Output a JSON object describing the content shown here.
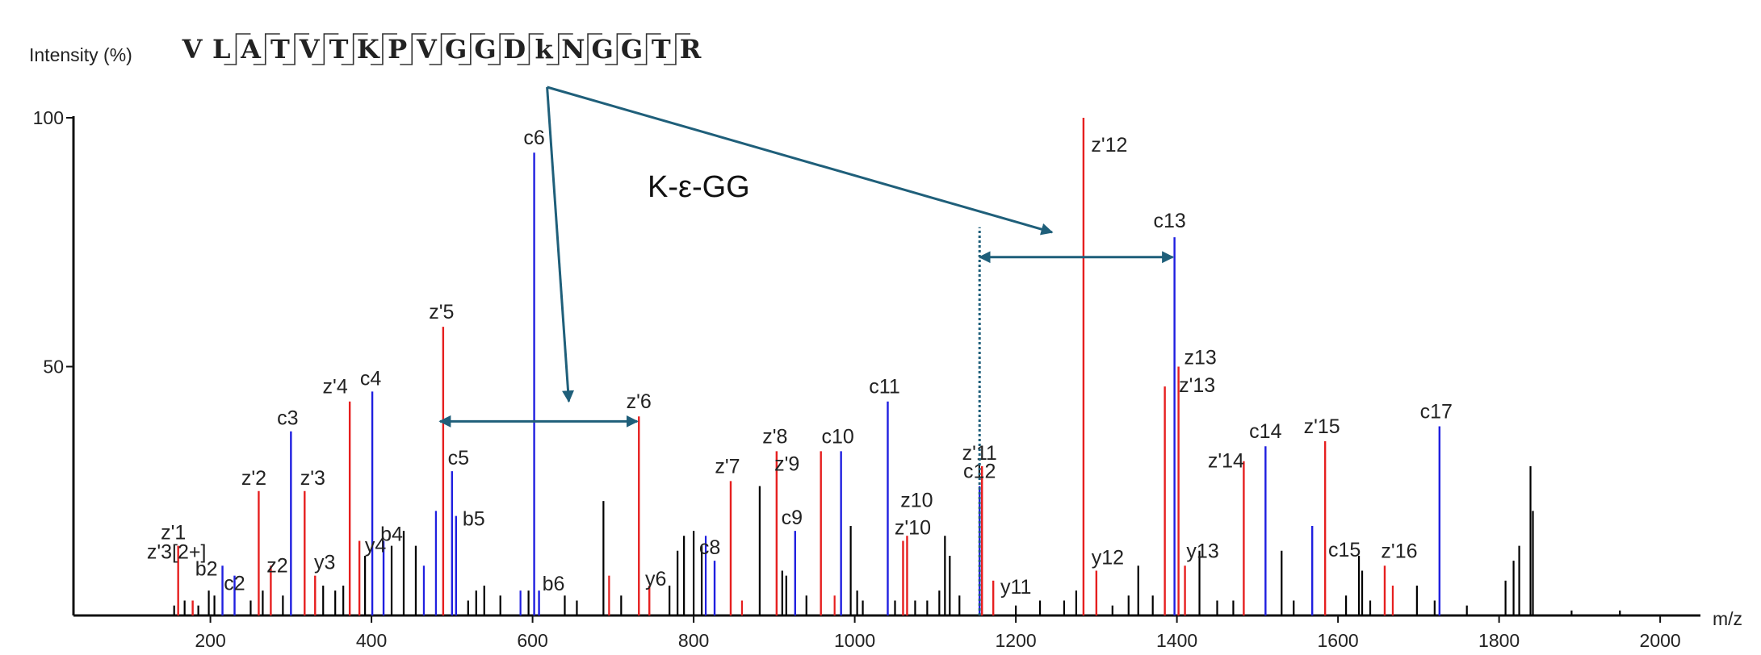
{
  "chart_data": {
    "type": "bar",
    "subtype": "mass spectrum (stick plot)",
    "ylabel": "Intensity (%)",
    "xlabel": "m/z",
    "xlim": [
      30,
      2050
    ],
    "ylim": [
      0,
      100
    ],
    "x_ticks": [
      200,
      400,
      600,
      800,
      1000,
      1200,
      1400,
      1600,
      1800,
      2000
    ],
    "y_ticks": [
      50,
      100
    ],
    "colors": {
      "c_b_ions": "#1f1fe0",
      "z_y_ions": "#e61f1f",
      "unassigned": "#000000",
      "annotation": "#1f5f7a"
    },
    "sequence": [
      "V",
      "L",
      "A",
      "T",
      "V",
      "T",
      "K",
      "P",
      "V",
      "G",
      "G",
      "D",
      "k",
      "N",
      "G",
      "G",
      "T",
      "R"
    ],
    "annotation": {
      "text": "K-ε-GG",
      "left_arrow_mz": [
        485,
        730
      ],
      "left_arrow_y": 39,
      "right_arrow_mz": [
        1155,
        1395
      ],
      "right_arrow_y": 72,
      "dotted_line_mz": 1155,
      "dotted_line_range": [
        0,
        78
      ]
    },
    "peaks_labeled": [
      {
        "mz": 160,
        "y": 14,
        "ion": "z'1",
        "color": "red"
      },
      {
        "mz": 178,
        "y": 3,
        "ion": "z'3[2+]",
        "color": "red"
      },
      {
        "mz": 215,
        "y": 10,
        "ion": "b2",
        "color": "blue"
      },
      {
        "mz": 230,
        "y": 8,
        "ion": "c2",
        "color": "blue"
      },
      {
        "mz": 260,
        "y": 25,
        "ion": "z'2",
        "color": "red"
      },
      {
        "mz": 275,
        "y": 10,
        "ion": "z2",
        "color": "red"
      },
      {
        "mz": 300,
        "y": 37,
        "ion": "c3",
        "color": "blue"
      },
      {
        "mz": 317,
        "y": 25,
        "ion": "z'3",
        "color": "red"
      },
      {
        "mz": 330,
        "y": 8,
        "ion": "y3",
        "color": "red"
      },
      {
        "mz": 373,
        "y": 43,
        "ion": "z'4",
        "color": "red"
      },
      {
        "mz": 385,
        "y": 15,
        "ion": "y4",
        "color": "red"
      },
      {
        "mz": 401,
        "y": 45,
        "ion": "c4",
        "color": "blue"
      },
      {
        "mz": 415,
        "y": 15,
        "ion": "b4",
        "color": "blue"
      },
      {
        "mz": 489,
        "y": 58,
        "ion": "z'5",
        "color": "red"
      },
      {
        "mz": 500,
        "y": 29,
        "ion": "c5",
        "color": "blue"
      },
      {
        "mz": 505,
        "y": 20,
        "ion": "b5",
        "color": "blue"
      },
      {
        "mz": 602,
        "y": 93,
        "ion": "c6",
        "color": "blue"
      },
      {
        "mz": 608,
        "y": 5,
        "ion": "b6",
        "color": "blue"
      },
      {
        "mz": 732,
        "y": 40,
        "ion": "z'6",
        "color": "red"
      },
      {
        "mz": 745,
        "y": 6,
        "ion": "y6",
        "color": "red"
      },
      {
        "mz": 826,
        "y": 11,
        "ion": "c8",
        "color": "blue"
      },
      {
        "mz": 846,
        "y": 27,
        "ion": "z'7",
        "color": "red"
      },
      {
        "mz": 903,
        "y": 33,
        "ion": "z'8",
        "color": "red"
      },
      {
        "mz": 926,
        "y": 17,
        "ion": "c9",
        "color": "blue"
      },
      {
        "mz": 958,
        "y": 33,
        "ion": "z'9",
        "color": "red"
      },
      {
        "mz": 983,
        "y": 33,
        "ion": "c10",
        "color": "blue"
      },
      {
        "mz": 1041,
        "y": 43,
        "ion": "c11",
        "color": "blue"
      },
      {
        "mz": 1060,
        "y": 15,
        "ion": "z'10",
        "color": "red"
      },
      {
        "mz": 1065,
        "y": 16,
        "ion": "z10",
        "color": "red"
      },
      {
        "mz": 1155,
        "y": 26,
        "ion": "c12",
        "color": "blue"
      },
      {
        "mz": 1158,
        "y": 30,
        "ion": "z'11",
        "color": "red"
      },
      {
        "mz": 1172,
        "y": 7,
        "ion": "y11",
        "color": "red"
      },
      {
        "mz": 1284,
        "y": 100,
        "ion": "z'12",
        "color": "red"
      },
      {
        "mz": 1300,
        "y": 9,
        "ion": "y12",
        "color": "red"
      },
      {
        "mz": 1385,
        "y": 46,
        "ion": "z'13",
        "color": "red"
      },
      {
        "mz": 1397,
        "y": 76,
        "ion": "c13",
        "color": "blue"
      },
      {
        "mz": 1402,
        "y": 50,
        "ion": "z13",
        "color": "red"
      },
      {
        "mz": 1410,
        "y": 10,
        "ion": "y13",
        "color": "red"
      },
      {
        "mz": 1483,
        "y": 31,
        "ion": "z'14",
        "color": "red"
      },
      {
        "mz": 1510,
        "y": 34,
        "ion": "c14",
        "color": "blue"
      },
      {
        "mz": 1568,
        "y": 18,
        "ion": "c15",
        "color": "blue"
      },
      {
        "mz": 1584,
        "y": 35,
        "ion": "z'15",
        "color": "red"
      },
      {
        "mz": 1658,
        "y": 10,
        "ion": "z'16",
        "color": "red"
      },
      {
        "mz": 1726,
        "y": 38,
        "ion": "c17",
        "color": "blue"
      }
    ],
    "peaks_unlabeled": [
      {
        "mz": 155,
        "y": 2,
        "color": "black"
      },
      {
        "mz": 168,
        "y": 3,
        "color": "black"
      },
      {
        "mz": 185,
        "y": 2,
        "color": "black"
      },
      {
        "mz": 198,
        "y": 5,
        "color": "black"
      },
      {
        "mz": 205,
        "y": 4,
        "color": "black"
      },
      {
        "mz": 250,
        "y": 3,
        "color": "black"
      },
      {
        "mz": 265,
        "y": 5,
        "color": "black"
      },
      {
        "mz": 290,
        "y": 4,
        "color": "black"
      },
      {
        "mz": 340,
        "y": 6,
        "color": "black"
      },
      {
        "mz": 355,
        "y": 5,
        "color": "black"
      },
      {
        "mz": 365,
        "y": 6,
        "color": "black"
      },
      {
        "mz": 392,
        "y": 12,
        "color": "black"
      },
      {
        "mz": 425,
        "y": 14,
        "color": "black"
      },
      {
        "mz": 440,
        "y": 17,
        "color": "black"
      },
      {
        "mz": 455,
        "y": 14,
        "color": "black"
      },
      {
        "mz": 465,
        "y": 10,
        "color": "blue"
      },
      {
        "mz": 480,
        "y": 21,
        "color": "blue"
      },
      {
        "mz": 520,
        "y": 3,
        "color": "black"
      },
      {
        "mz": 530,
        "y": 5,
        "color": "black"
      },
      {
        "mz": 540,
        "y": 6,
        "color": "black"
      },
      {
        "mz": 560,
        "y": 4,
        "color": "black"
      },
      {
        "mz": 585,
        "y": 5,
        "color": "blue"
      },
      {
        "mz": 595,
        "y": 5,
        "color": "black"
      },
      {
        "mz": 640,
        "y": 4,
        "color": "black"
      },
      {
        "mz": 655,
        "y": 3,
        "color": "black"
      },
      {
        "mz": 688,
        "y": 23,
        "color": "black"
      },
      {
        "mz": 695,
        "y": 8,
        "color": "red"
      },
      {
        "mz": 710,
        "y": 4,
        "color": "black"
      },
      {
        "mz": 770,
        "y": 6,
        "color": "black"
      },
      {
        "mz": 780,
        "y": 13,
        "color": "black"
      },
      {
        "mz": 788,
        "y": 16,
        "color": "black"
      },
      {
        "mz": 800,
        "y": 17,
        "color": "black"
      },
      {
        "mz": 810,
        "y": 14,
        "color": "black"
      },
      {
        "mz": 815,
        "y": 16,
        "color": "blue"
      },
      {
        "mz": 860,
        "y": 3,
        "color": "red"
      },
      {
        "mz": 882,
        "y": 26,
        "color": "black"
      },
      {
        "mz": 910,
        "y": 9,
        "color": "black"
      },
      {
        "mz": 915,
        "y": 8,
        "color": "black"
      },
      {
        "mz": 940,
        "y": 4,
        "color": "black"
      },
      {
        "mz": 975,
        "y": 4,
        "color": "red"
      },
      {
        "mz": 995,
        "y": 18,
        "color": "black"
      },
      {
        "mz": 1003,
        "y": 5,
        "color": "black"
      },
      {
        "mz": 1010,
        "y": 3,
        "color": "black"
      },
      {
        "mz": 1050,
        "y": 3,
        "color": "black"
      },
      {
        "mz": 1075,
        "y": 3,
        "color": "black"
      },
      {
        "mz": 1090,
        "y": 3,
        "color": "black"
      },
      {
        "mz": 1105,
        "y": 5,
        "color": "black"
      },
      {
        "mz": 1112,
        "y": 16,
        "color": "black"
      },
      {
        "mz": 1118,
        "y": 12,
        "color": "black"
      },
      {
        "mz": 1130,
        "y": 4,
        "color": "black"
      },
      {
        "mz": 1200,
        "y": 2,
        "color": "black"
      },
      {
        "mz": 1230,
        "y": 3,
        "color": "black"
      },
      {
        "mz": 1260,
        "y": 3,
        "color": "black"
      },
      {
        "mz": 1275,
        "y": 5,
        "color": "black"
      },
      {
        "mz": 1320,
        "y": 2,
        "color": "black"
      },
      {
        "mz": 1340,
        "y": 4,
        "color": "black"
      },
      {
        "mz": 1352,
        "y": 10,
        "color": "black"
      },
      {
        "mz": 1370,
        "y": 4,
        "color": "black"
      },
      {
        "mz": 1428,
        "y": 13,
        "color": "black"
      },
      {
        "mz": 1450,
        "y": 3,
        "color": "black"
      },
      {
        "mz": 1470,
        "y": 3,
        "color": "black"
      },
      {
        "mz": 1530,
        "y": 13,
        "color": "black"
      },
      {
        "mz": 1545,
        "y": 3,
        "color": "black"
      },
      {
        "mz": 1610,
        "y": 4,
        "color": "black"
      },
      {
        "mz": 1626,
        "y": 12,
        "color": "black"
      },
      {
        "mz": 1630,
        "y": 9,
        "color": "black"
      },
      {
        "mz": 1640,
        "y": 3,
        "color": "black"
      },
      {
        "mz": 1668,
        "y": 6,
        "color": "red"
      },
      {
        "mz": 1698,
        "y": 6,
        "color": "black"
      },
      {
        "mz": 1720,
        "y": 3,
        "color": "black"
      },
      {
        "mz": 1760,
        "y": 2,
        "color": "black"
      },
      {
        "mz": 1808,
        "y": 7,
        "color": "black"
      },
      {
        "mz": 1818,
        "y": 11,
        "color": "black"
      },
      {
        "mz": 1825,
        "y": 14,
        "color": "black"
      },
      {
        "mz": 1839,
        "y": 30,
        "color": "black"
      },
      {
        "mz": 1842,
        "y": 21,
        "color": "black"
      },
      {
        "mz": 1890,
        "y": 1,
        "color": "black"
      },
      {
        "mz": 1950,
        "y": 1,
        "color": "black"
      }
    ],
    "label_positions": {
      "z'3[2+]": "above-left"
    }
  }
}
